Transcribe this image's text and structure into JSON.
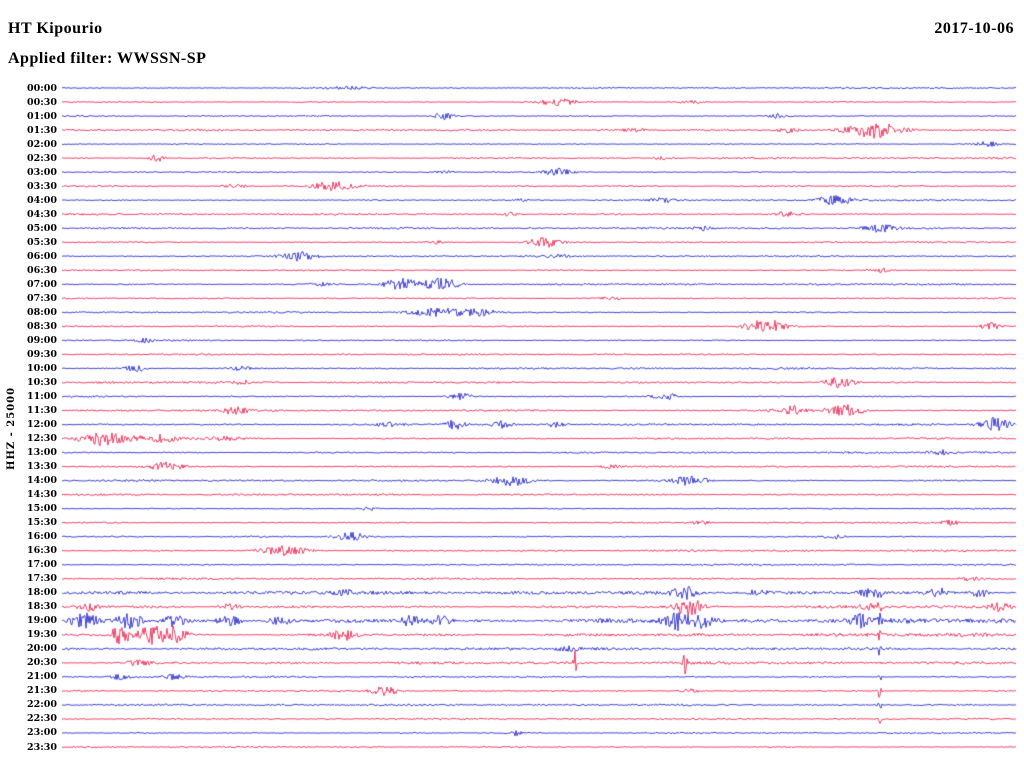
{
  "header": {
    "station": "HT Kipourio",
    "date": "2017-10-06",
    "filter": "Applied filter: WWSSN-SP"
  },
  "chart_data": {
    "type": "line",
    "subtype": "helicorder-seismogram",
    "title": "HT Kipourio",
    "date": "2017-10-06",
    "applied_filter": "WWSSN-SP",
    "y_axis_label": "HHZ - 25000",
    "minutes_per_row": 30,
    "legend": "alternating blue/red 30-minute traces, one row per half hour",
    "trace_colors": {
      "blue": "#1414cc",
      "red": "#ee1243"
    },
    "events_format": "[x_fraction_of_row, peak_amplitude_px, envelope_width_px]",
    "rows": [
      {
        "time": "00:00",
        "color": "blue",
        "noise": 0.6,
        "events": [
          [
            0.3,
            1.5,
            25
          ]
        ]
      },
      {
        "time": "00:30",
        "color": "red",
        "noise": 0.6,
        "events": [
          [
            0.52,
            3.5,
            18
          ],
          [
            0.66,
            1.5,
            15
          ]
        ]
      },
      {
        "time": "01:00",
        "color": "blue",
        "noise": 0.6,
        "events": [
          [
            0.4,
            4,
            10
          ],
          [
            0.75,
            2,
            12
          ]
        ]
      },
      {
        "time": "01:30",
        "color": "red",
        "noise": 0.7,
        "events": [
          [
            0.85,
            8,
            28
          ],
          [
            0.76,
            2.5,
            15
          ],
          [
            0.6,
            1.5,
            12
          ]
        ]
      },
      {
        "time": "02:00",
        "color": "blue",
        "noise": 0.6,
        "events": [
          [
            0.97,
            2.5,
            10
          ]
        ]
      },
      {
        "time": "02:30",
        "color": "red",
        "noise": 0.8,
        "events": [
          [
            0.1,
            3.5,
            8
          ],
          [
            0.63,
            1.5,
            10
          ]
        ]
      },
      {
        "time": "03:00",
        "color": "blue",
        "noise": 0.6,
        "events": [
          [
            0.52,
            4,
            14
          ],
          [
            0.4,
            1.8,
            10
          ]
        ]
      },
      {
        "time": "03:30",
        "color": "red",
        "noise": 0.8,
        "events": [
          [
            0.285,
            5,
            20
          ],
          [
            0.18,
            1.8,
            12
          ]
        ]
      },
      {
        "time": "04:00",
        "color": "blue",
        "noise": 0.6,
        "events": [
          [
            0.81,
            6,
            18
          ],
          [
            0.63,
            2.5,
            12
          ],
          [
            0.48,
            1.6,
            10
          ]
        ]
      },
      {
        "time": "04:30",
        "color": "red",
        "noise": 0.7,
        "events": [
          [
            0.76,
            2.5,
            14
          ],
          [
            0.47,
            1.5,
            10
          ]
        ]
      },
      {
        "time": "05:00",
        "color": "blue",
        "noise": 0.7,
        "events": [
          [
            0.857,
            4,
            16
          ],
          [
            0.67,
            2,
            10
          ]
        ]
      },
      {
        "time": "05:30",
        "color": "red",
        "noise": 0.7,
        "events": [
          [
            0.506,
            5,
            16
          ],
          [
            0.39,
            1.8,
            10
          ]
        ]
      },
      {
        "time": "06:00",
        "color": "blue",
        "noise": 0.6,
        "events": [
          [
            0.249,
            4.5,
            16
          ],
          [
            0.52,
            1.6,
            10
          ]
        ]
      },
      {
        "time": "06:30",
        "color": "red",
        "noise": 0.7,
        "events": [
          [
            0.857,
            2.5,
            12
          ]
        ]
      },
      {
        "time": "07:00",
        "color": "blue",
        "noise": 0.7,
        "events": [
          [
            0.355,
            7,
            14
          ],
          [
            0.397,
            6,
            18
          ],
          [
            0.27,
            2,
            10
          ]
        ]
      },
      {
        "time": "07:30",
        "color": "red",
        "noise": 0.7,
        "events": [
          [
            0.574,
            1.8,
            10
          ]
        ]
      },
      {
        "time": "08:00",
        "color": "blue",
        "noise": 0.7,
        "events": [
          [
            0.397,
            4.5,
            30
          ],
          [
            0.44,
            3,
            15
          ]
        ]
      },
      {
        "time": "08:30",
        "color": "red",
        "noise": 0.7,
        "events": [
          [
            0.737,
            7,
            20
          ],
          [
            0.973,
            3.5,
            10
          ]
        ]
      },
      {
        "time": "09:00",
        "color": "blue",
        "noise": 0.6,
        "events": [
          [
            0.087,
            1.8,
            10
          ]
        ]
      },
      {
        "time": "09:30",
        "color": "red",
        "noise": 0.6,
        "events": []
      },
      {
        "time": "10:00",
        "color": "blue",
        "noise": 0.7,
        "events": [
          [
            0.0765,
            3.5,
            10
          ],
          [
            0.187,
            1.8,
            10
          ]
        ]
      },
      {
        "time": "10:30",
        "color": "red",
        "noise": 0.8,
        "events": [
          [
            0.815,
            5.5,
            16
          ],
          [
            0.19,
            1.6,
            10
          ]
        ]
      },
      {
        "time": "11:00",
        "color": "blue",
        "noise": 0.7,
        "events": [
          [
            0.417,
            3.5,
            12
          ],
          [
            0.632,
            3.5,
            14
          ]
        ]
      },
      {
        "time": "11:30",
        "color": "red",
        "noise": 0.8,
        "events": [
          [
            0.181,
            3.5,
            12
          ],
          [
            0.763,
            4.5,
            14
          ],
          [
            0.821,
            7,
            18
          ]
        ]
      },
      {
        "time": "12:00",
        "color": "blue",
        "noise": 0.7,
        "events": [
          [
            0.344,
            3.5,
            10
          ],
          [
            0.412,
            4.5,
            10
          ],
          [
            0.459,
            3.5,
            10
          ],
          [
            0.517,
            2.5,
            10
          ],
          [
            0.978,
            7,
            14
          ]
        ]
      },
      {
        "time": "12:30",
        "color": "red",
        "noise": 0.8,
        "events": [
          [
            0.04,
            8,
            22
          ],
          [
            0.1,
            4,
            25
          ],
          [
            0.17,
            2,
            20
          ]
        ]
      },
      {
        "time": "13:00",
        "color": "blue",
        "noise": 0.8,
        "events": [
          [
            0.92,
            2.5,
            10
          ]
        ]
      },
      {
        "time": "13:30",
        "color": "red",
        "noise": 0.8,
        "events": [
          [
            0.108,
            5.5,
            16
          ],
          [
            0.574,
            1.8,
            10
          ]
        ]
      },
      {
        "time": "14:00",
        "color": "blue",
        "noise": 0.7,
        "events": [
          [
            0.47,
            5.5,
            18
          ],
          [
            0.658,
            4.5,
            16
          ]
        ]
      },
      {
        "time": "14:30",
        "color": "red",
        "noise": 0.7,
        "events": []
      },
      {
        "time": "15:00",
        "color": "blue",
        "noise": 0.6,
        "events": [
          [
            0.323,
            1.8,
            10
          ]
        ]
      },
      {
        "time": "15:30",
        "color": "red",
        "noise": 0.7,
        "events": [
          [
            0.669,
            2.5,
            10
          ],
          [
            0.93,
            2.5,
            10
          ]
        ]
      },
      {
        "time": "16:00",
        "color": "blue",
        "noise": 0.7,
        "events": [
          [
            0.302,
            4.5,
            14
          ],
          [
            0.81,
            2.5,
            10
          ]
        ]
      },
      {
        "time": "16:30",
        "color": "red",
        "noise": 0.8,
        "events": [
          [
            0.234,
            5,
            25
          ]
        ]
      },
      {
        "time": "17:00",
        "color": "blue",
        "noise": 0.6,
        "events": []
      },
      {
        "time": "17:30",
        "color": "red",
        "noise": 0.7,
        "events": [
          [
            0.95,
            1.8,
            12
          ]
        ]
      },
      {
        "time": "18:00",
        "color": "blue",
        "noise": 1.3,
        "events": [
          [
            0.653,
            6,
            12
          ],
          [
            0.727,
            3.5,
            10
          ],
          [
            0.847,
            4.5,
            10
          ],
          [
            0.92,
            4.5,
            10
          ],
          [
            0.962,
            4.5,
            10
          ],
          [
            0.3,
            2,
            15
          ],
          [
            0.857,
            6,
            1.5
          ]
        ]
      },
      {
        "time": "18:30",
        "color": "red",
        "noise": 1.4,
        "events": [
          [
            0.029,
            4.5,
            10
          ],
          [
            0.176,
            3.5,
            10
          ],
          [
            0.658,
            8,
            14
          ],
          [
            0.847,
            3.5,
            10
          ],
          [
            0.983,
            5.5,
            10
          ],
          [
            0.857,
            6,
            1.5
          ]
        ]
      },
      {
        "time": "19:00",
        "color": "blue",
        "noise": 2.2,
        "events": [
          [
            0.024,
            7,
            12
          ],
          [
            0.071,
            8,
            12
          ],
          [
            0.118,
            6,
            12
          ],
          [
            0.176,
            5,
            12
          ],
          [
            0.229,
            4,
            12
          ],
          [
            0.365,
            5,
            10
          ],
          [
            0.396,
            5,
            10
          ],
          [
            0.643,
            9,
            12
          ],
          [
            0.669,
            7,
            12
          ],
          [
            0.837,
            5,
            10
          ],
          [
            0.857,
            6,
            1.5
          ]
        ]
      },
      {
        "time": "19:30",
        "color": "red",
        "noise": 1.5,
        "events": [
          [
            0.061,
            9,
            10
          ],
          [
            0.092,
            10,
            12
          ],
          [
            0.118,
            8,
            12
          ],
          [
            0.297,
            5.5,
            14
          ],
          [
            0.857,
            6,
            1.5
          ]
        ]
      },
      {
        "time": "20:00",
        "color": "blue",
        "noise": 1.0,
        "events": [
          [
            0.53,
            2,
            10
          ],
          [
            0.857,
            7,
            1.5
          ]
        ]
      },
      {
        "time": "20:30",
        "color": "red",
        "noise": 1.0,
        "events": [
          [
            0.538,
            12,
            2
          ],
          [
            0.653,
            10,
            2
          ],
          [
            0.08,
            2.5,
            12
          ],
          [
            0.857,
            7,
            1.5
          ]
        ]
      },
      {
        "time": "21:00",
        "color": "blue",
        "noise": 0.8,
        "events": [
          [
            0.06,
            2.5,
            10
          ],
          [
            0.118,
            2.5,
            10
          ],
          [
            0.857,
            7,
            1.5
          ]
        ]
      },
      {
        "time": "21:30",
        "color": "red",
        "noise": 0.8,
        "events": [
          [
            0.338,
            4.5,
            14
          ],
          [
            0.658,
            2,
            10
          ],
          [
            0.857,
            7,
            1.5
          ]
        ]
      },
      {
        "time": "22:00",
        "color": "blue",
        "noise": 0.7,
        "events": [
          [
            0.857,
            16,
            1.5
          ]
        ]
      },
      {
        "time": "22:30",
        "color": "red",
        "noise": 0.6,
        "events": [
          [
            0.857,
            6,
            1.5
          ]
        ]
      },
      {
        "time": "23:00",
        "color": "blue",
        "noise": 0.6,
        "events": [
          [
            0.475,
            2.5,
            6
          ]
        ]
      },
      {
        "time": "23:30",
        "color": "red",
        "noise": 0.6,
        "events": []
      }
    ]
  }
}
